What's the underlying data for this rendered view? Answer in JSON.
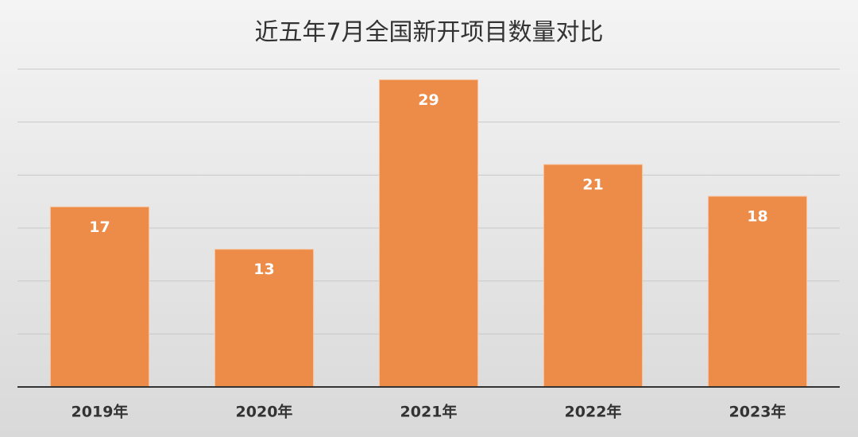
{
  "chart_data": {
    "type": "bar",
    "title": "近五年7月全国新开项目数量对比",
    "categories": [
      "2019年",
      "2020年",
      "2021年",
      "2022年",
      "2023年"
    ],
    "values": [
      17,
      13,
      29,
      21,
      18
    ],
    "color": "#ed8b48",
    "ylim": [
      0,
      30
    ],
    "yticks": [
      0,
      5,
      10,
      15,
      20,
      25,
      30
    ],
    "grid": true
  }
}
